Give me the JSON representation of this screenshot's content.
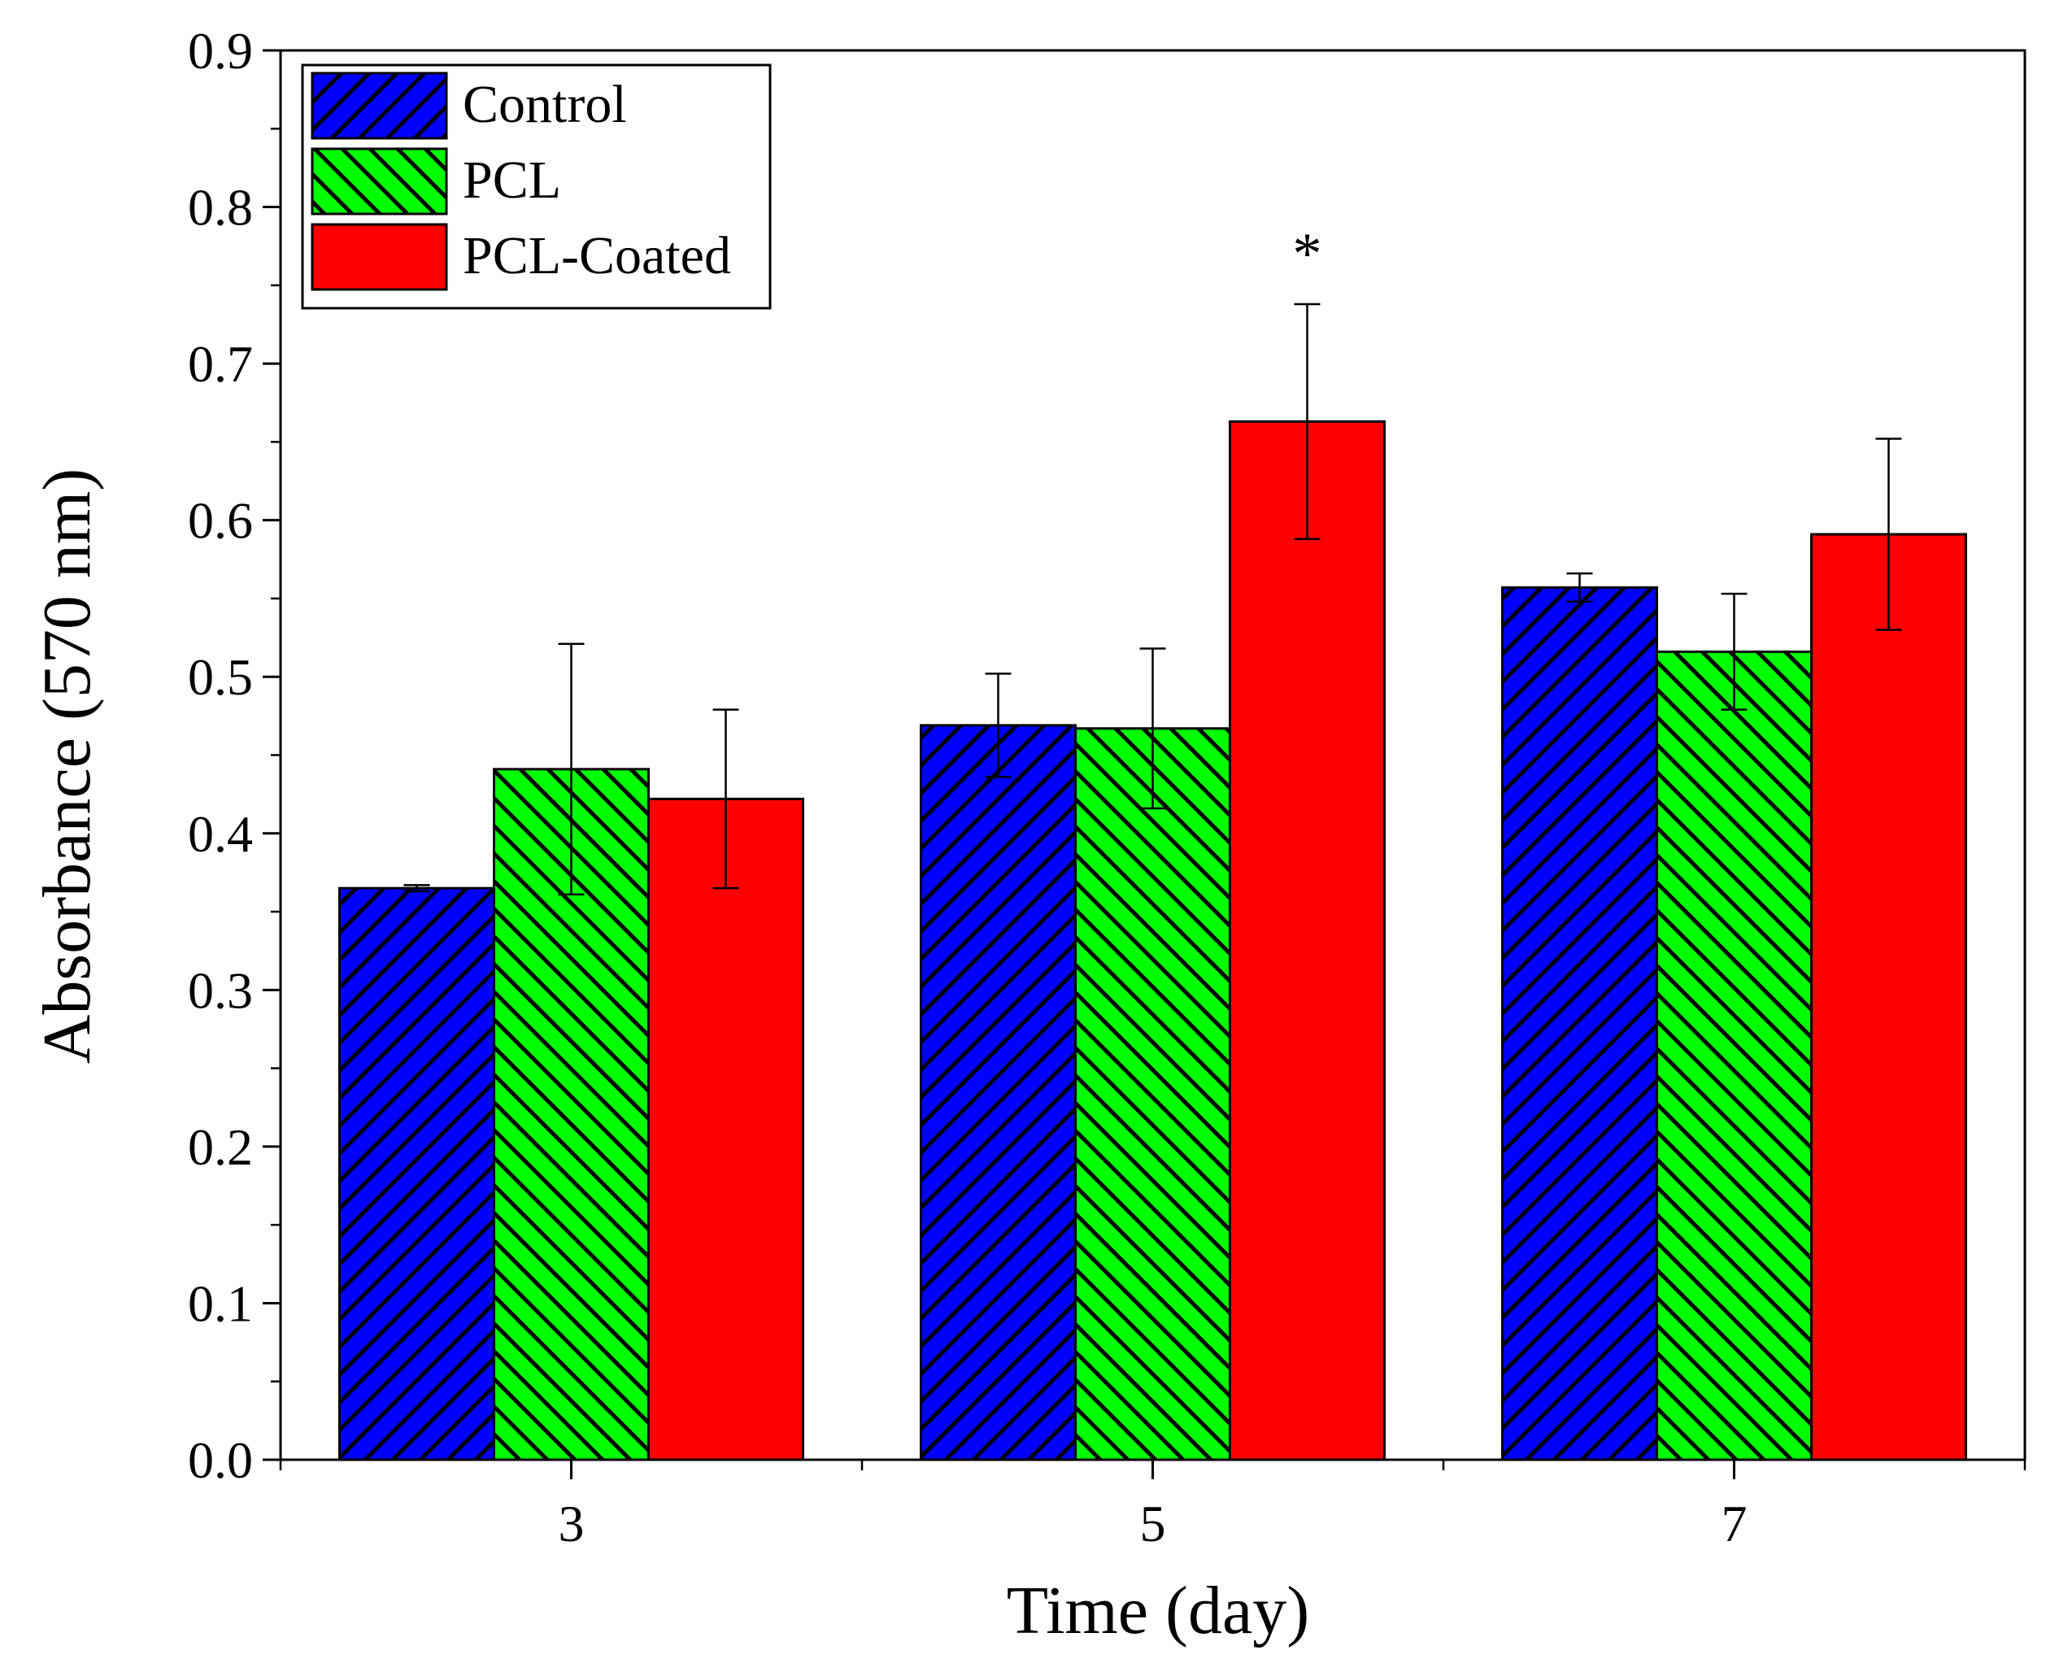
{
  "chart_data": {
    "type": "bar",
    "title": "",
    "xlabel": "Time (day)",
    "ylabel": "Absorbance (570 nm)",
    "categories": [
      "3",
      "5",
      "7"
    ],
    "ylim": [
      0,
      0.9
    ],
    "yticks": [
      "0.0",
      "0.1",
      "0.2",
      "0.3",
      "0.4",
      "0.5",
      "0.6",
      "0.7",
      "0.8",
      "0.9"
    ],
    "legend_position": "top-left",
    "series": [
      {
        "name": "Control",
        "color": "#0000ff",
        "pattern": "hatch-forward",
        "values": [
          0.365,
          0.469,
          0.557
        ],
        "errors": [
          0.002,
          0.033,
          0.009
        ]
      },
      {
        "name": "PCL",
        "color": "#00ff00",
        "pattern": "hatch-backward",
        "values": [
          0.441,
          0.467,
          0.516
        ],
        "errors": [
          0.08,
          0.051,
          0.037
        ]
      },
      {
        "name": "PCL-Coated",
        "color": "#ff0000",
        "pattern": "solid",
        "values": [
          0.422,
          0.663,
          0.591
        ],
        "errors": [
          0.057,
          0.075,
          0.061
        ]
      }
    ],
    "annotations": [
      {
        "text": "*",
        "category": "5",
        "series": "PCL-Coated"
      }
    ]
  }
}
